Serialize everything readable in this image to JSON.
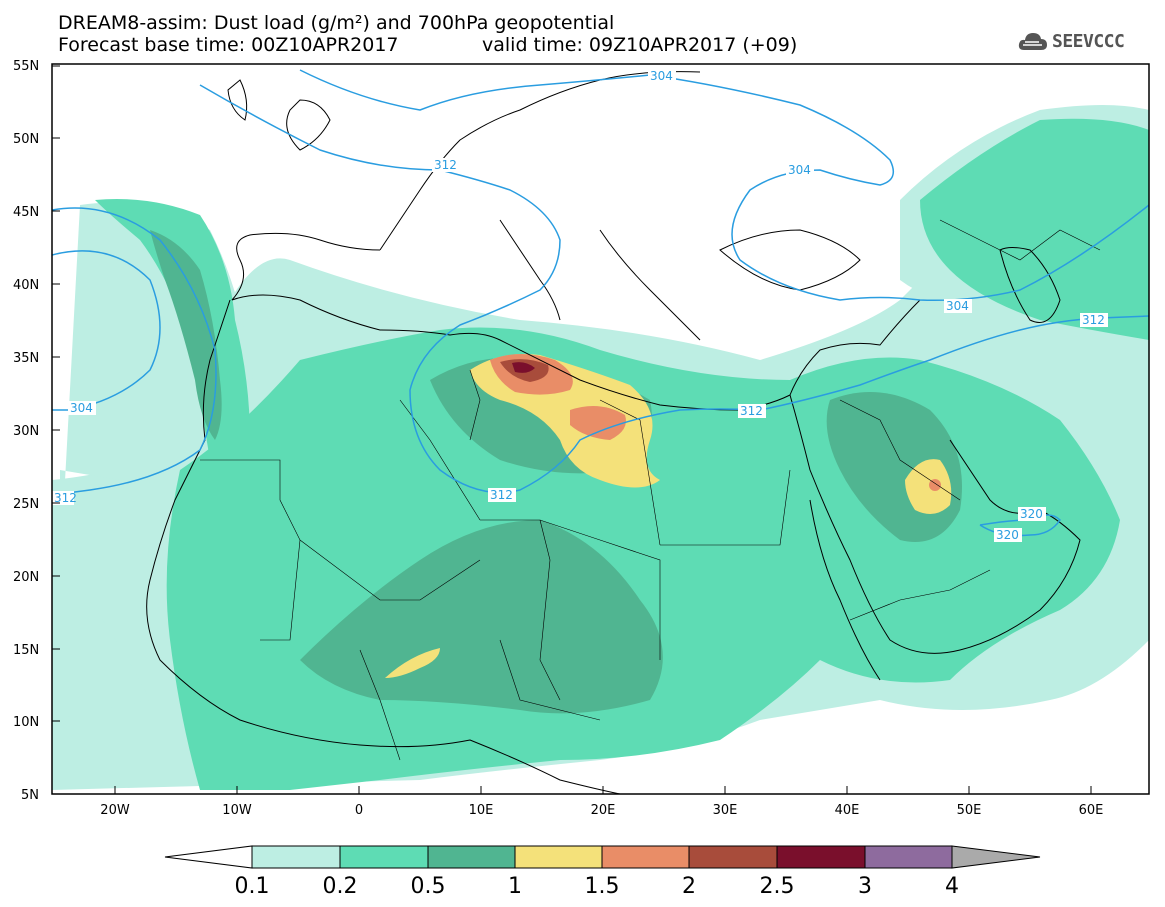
{
  "title": {
    "line1": "DREAM8-assim: Dust load (g/m²) and 700hPa geopotential",
    "line2": "Forecast base time: 00Z10APR2017",
    "valid_time": "valid time: 09Z10APR2017 (+09)"
  },
  "logo": {
    "text": "SEEVCCC",
    "icon": "cloud-icon"
  },
  "axes": {
    "lat_labels": [
      "55N",
      "50N",
      "45N",
      "40N",
      "35N",
      "30N",
      "25N",
      "20N",
      "15N",
      "10N",
      "5N"
    ],
    "lon_labels": [
      "20W",
      "10W",
      "0",
      "10E",
      "20E",
      "30E",
      "40E",
      "50E",
      "60E"
    ]
  },
  "contours": {
    "labels": [
      "304",
      "312",
      "304",
      "312",
      "304",
      "312",
      "312",
      "304",
      "312",
      "320",
      "320"
    ]
  },
  "legend": {
    "colors": [
      "#ffffff",
      "#bdeee3",
      "#5edcb4",
      "#50b591",
      "#f4e17a",
      "#e98d67",
      "#a84c3b",
      "#7a0f2c",
      "#8e6b9e",
      "#aaaaaa"
    ],
    "labels": [
      "0.1",
      "0.2",
      "0.5",
      "1",
      "1.5",
      "2",
      "2.5",
      "3",
      "4"
    ]
  }
}
